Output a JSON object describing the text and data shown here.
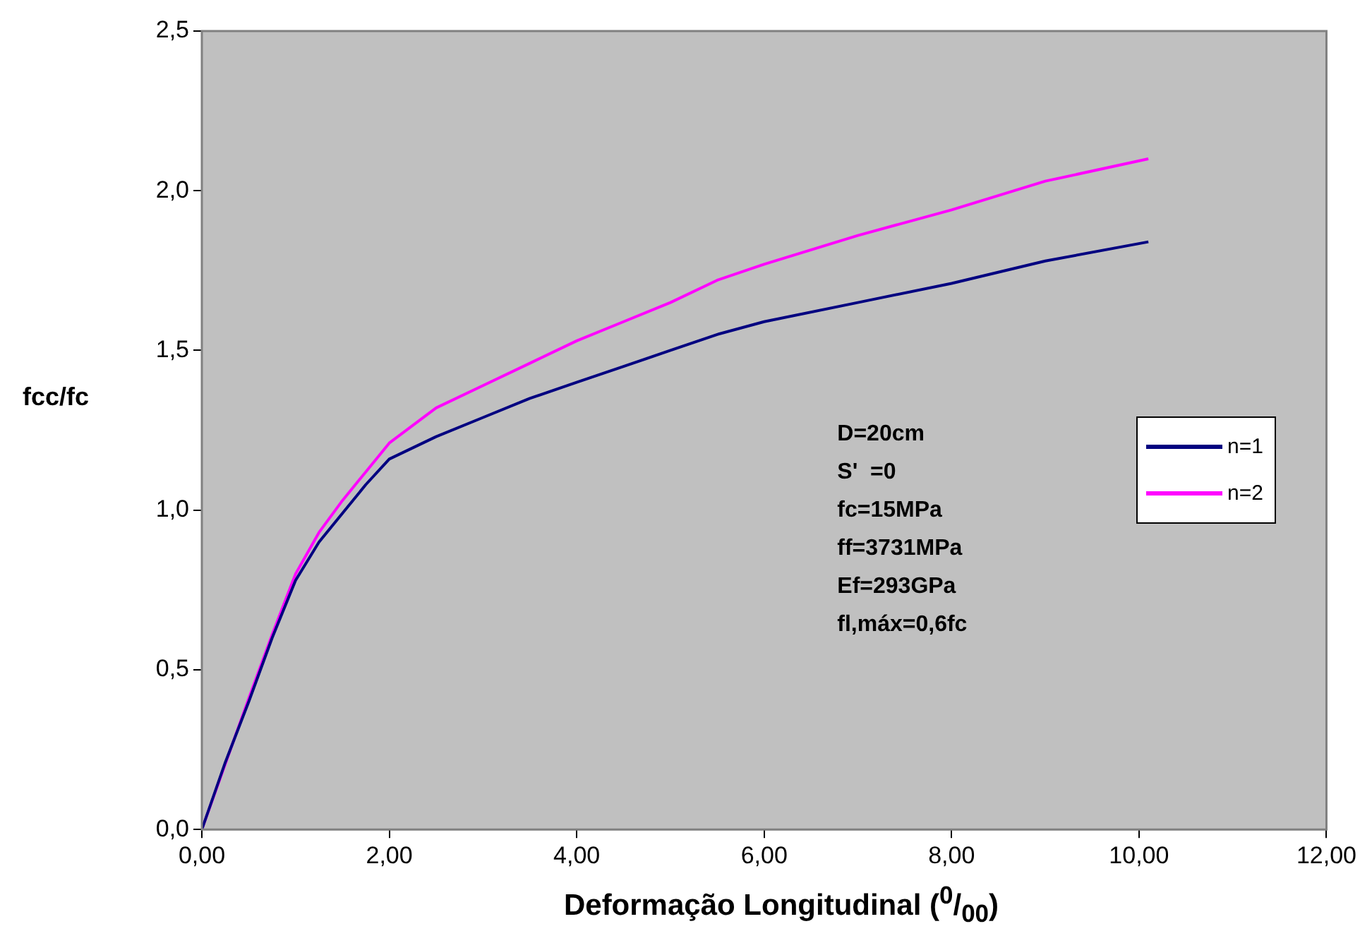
{
  "chart_data": {
    "type": "line",
    "xlabel": "Deformação Longitudinal ($^{0}$/$_{00}$)",
    "ylabel": "fcc/fc",
    "xlim": [
      0,
      12
    ],
    "ylim": [
      0,
      2.5
    ],
    "xticks": [
      {
        "value": 0,
        "label": "0,00"
      },
      {
        "value": 2,
        "label": "2,00"
      },
      {
        "value": 4,
        "label": "4,00"
      },
      {
        "value": 6,
        "label": "6,00"
      },
      {
        "value": 8,
        "label": "8,00"
      },
      {
        "value": 10,
        "label": "10,00"
      },
      {
        "value": 12,
        "label": "12,00"
      }
    ],
    "yticks": [
      {
        "value": 0,
        "label": "0,0"
      },
      {
        "value": 0.5,
        "label": "0,5"
      },
      {
        "value": 1,
        "label": "1,0"
      },
      {
        "value": 1.5,
        "label": "1,5"
      },
      {
        "value": 2,
        "label": "2,0"
      },
      {
        "value": 2.5,
        "label": "2,5"
      }
    ],
    "grid": false,
    "legend": "right",
    "marker": "none",
    "line_style": "solid",
    "annotations": [
      "D=20cm",
      "S'  =0",
      "fc=15MPa",
      "ff=3731MPa",
      "Ef=293GPa",
      "fl,máx=0,6fc"
    ],
    "series": [
      {
        "name": "n=1",
        "color": "#000080",
        "x": [
          0,
          0.25,
          0.5,
          0.75,
          1,
          1.25,
          1.5,
          1.75,
          2,
          2.5,
          3,
          3.5,
          4,
          4.5,
          5,
          5.5,
          6,
          7,
          8,
          9,
          10.1
        ],
        "values": [
          0,
          0.21,
          0.4,
          0.6,
          0.78,
          0.9,
          0.99,
          1.08,
          1.16,
          1.23,
          1.29,
          1.35,
          1.4,
          1.45,
          1.5,
          1.55,
          1.59,
          1.65,
          1.71,
          1.78,
          1.84
        ]
      },
      {
        "name": "n=2",
        "color": "#ff00ff",
        "x": [
          0,
          0.5,
          0.75,
          1,
          1.25,
          1.5,
          1.75,
          2,
          2.5,
          3,
          3.5,
          4,
          4.5,
          5,
          5.5,
          6,
          7,
          8,
          9,
          10.1
        ],
        "values": [
          0,
          0.41,
          0.61,
          0.8,
          0.93,
          1.03,
          1.12,
          1.21,
          1.32,
          1.39,
          1.46,
          1.53,
          1.59,
          1.65,
          1.72,
          1.77,
          1.86,
          1.94,
          2.03,
          2.1
        ]
      }
    ]
  }
}
